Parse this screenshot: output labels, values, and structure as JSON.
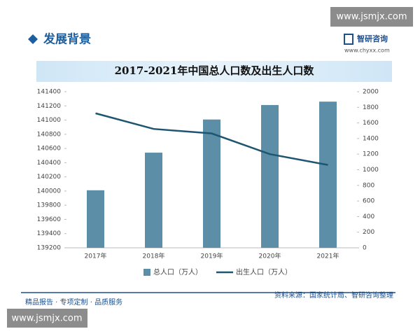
{
  "header": {
    "title": "发展背景",
    "watermark_top": "www.jsmjx.com",
    "logo": "智研咨询",
    "logo_url": "www.chyxx.com"
  },
  "footer": {
    "left": "精品报告 · 专项定制 · 品质服务",
    "right": "资料来源：国家统计局、智研咨询整理",
    "watermark_bottom": "www.jsmjx.com"
  },
  "chart_data": {
    "type": "bar",
    "title": "2017-2021年中国总人口数及出生人口数",
    "categories": [
      "2017年",
      "2018年",
      "2019年",
      "2020年",
      "2021年"
    ],
    "series": [
      {
        "name": "总人口（万人）",
        "type": "bar",
        "color": "#5d8ea7",
        "values": [
          140011,
          140541,
          141008,
          141212,
          141260
        ]
      },
      {
        "name": "出生人口（万人）",
        "type": "line",
        "axis": "y2",
        "color": "#1e5570",
        "values": [
          1723,
          1523,
          1465,
          1200,
          1062
        ]
      }
    ],
    "ylim": [
      139200,
      141400
    ],
    "yticks": [
      139200,
      139400,
      139600,
      139800,
      140000,
      140200,
      140400,
      140600,
      140800,
      141000,
      141200,
      141400
    ],
    "y2lim": [
      0,
      2000
    ],
    "y2ticks": [
      0,
      200,
      400,
      600,
      800,
      1000,
      1200,
      1400,
      1600,
      1800,
      2000
    ],
    "legend": "bottom"
  }
}
